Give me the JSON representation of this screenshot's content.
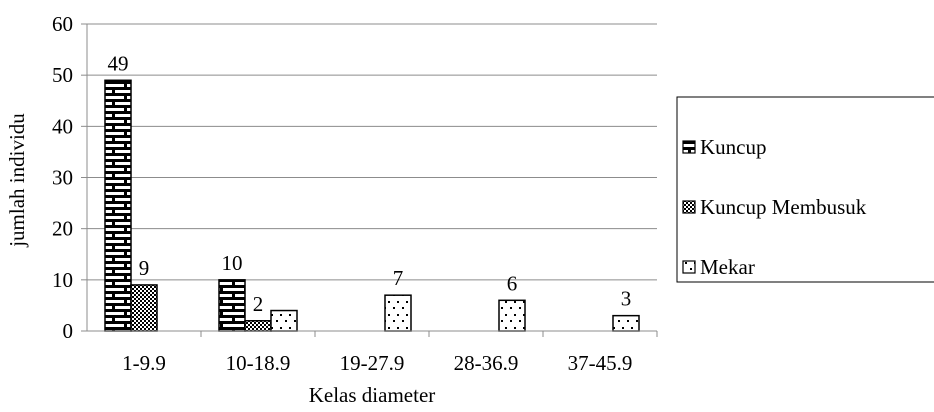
{
  "chart_data": {
    "type": "bar",
    "title": "",
    "xlabel": "Kelas diameter",
    "ylabel": "jumlah individu",
    "ylim": [
      0,
      60
    ],
    "yticks": [
      0,
      10,
      20,
      30,
      40,
      50,
      60
    ],
    "grid": true,
    "legend_position": "right",
    "categories": [
      "1-9.9",
      "10-18.9",
      "19-27.9",
      "28-36.9",
      "37-45.9"
    ],
    "series": [
      {
        "name": "Kuncup",
        "values": [
          49,
          10,
          0,
          0,
          0
        ],
        "labels": [
          "49",
          "10",
          "",
          "",
          ""
        ],
        "pattern": "brick",
        "color": "#000000"
      },
      {
        "name": "Kuncup Membusuk",
        "values": [
          9,
          2,
          0,
          0,
          0
        ],
        "labels": [
          "9",
          "2",
          "",
          "",
          ""
        ],
        "pattern": "checker",
        "color": "#000000"
      },
      {
        "name": "Mekar",
        "values": [
          0,
          4,
          7,
          6,
          3
        ],
        "labels": [
          "",
          "",
          "7",
          "6",
          "3"
        ],
        "pattern": "dots",
        "color": "#000000"
      }
    ]
  }
}
